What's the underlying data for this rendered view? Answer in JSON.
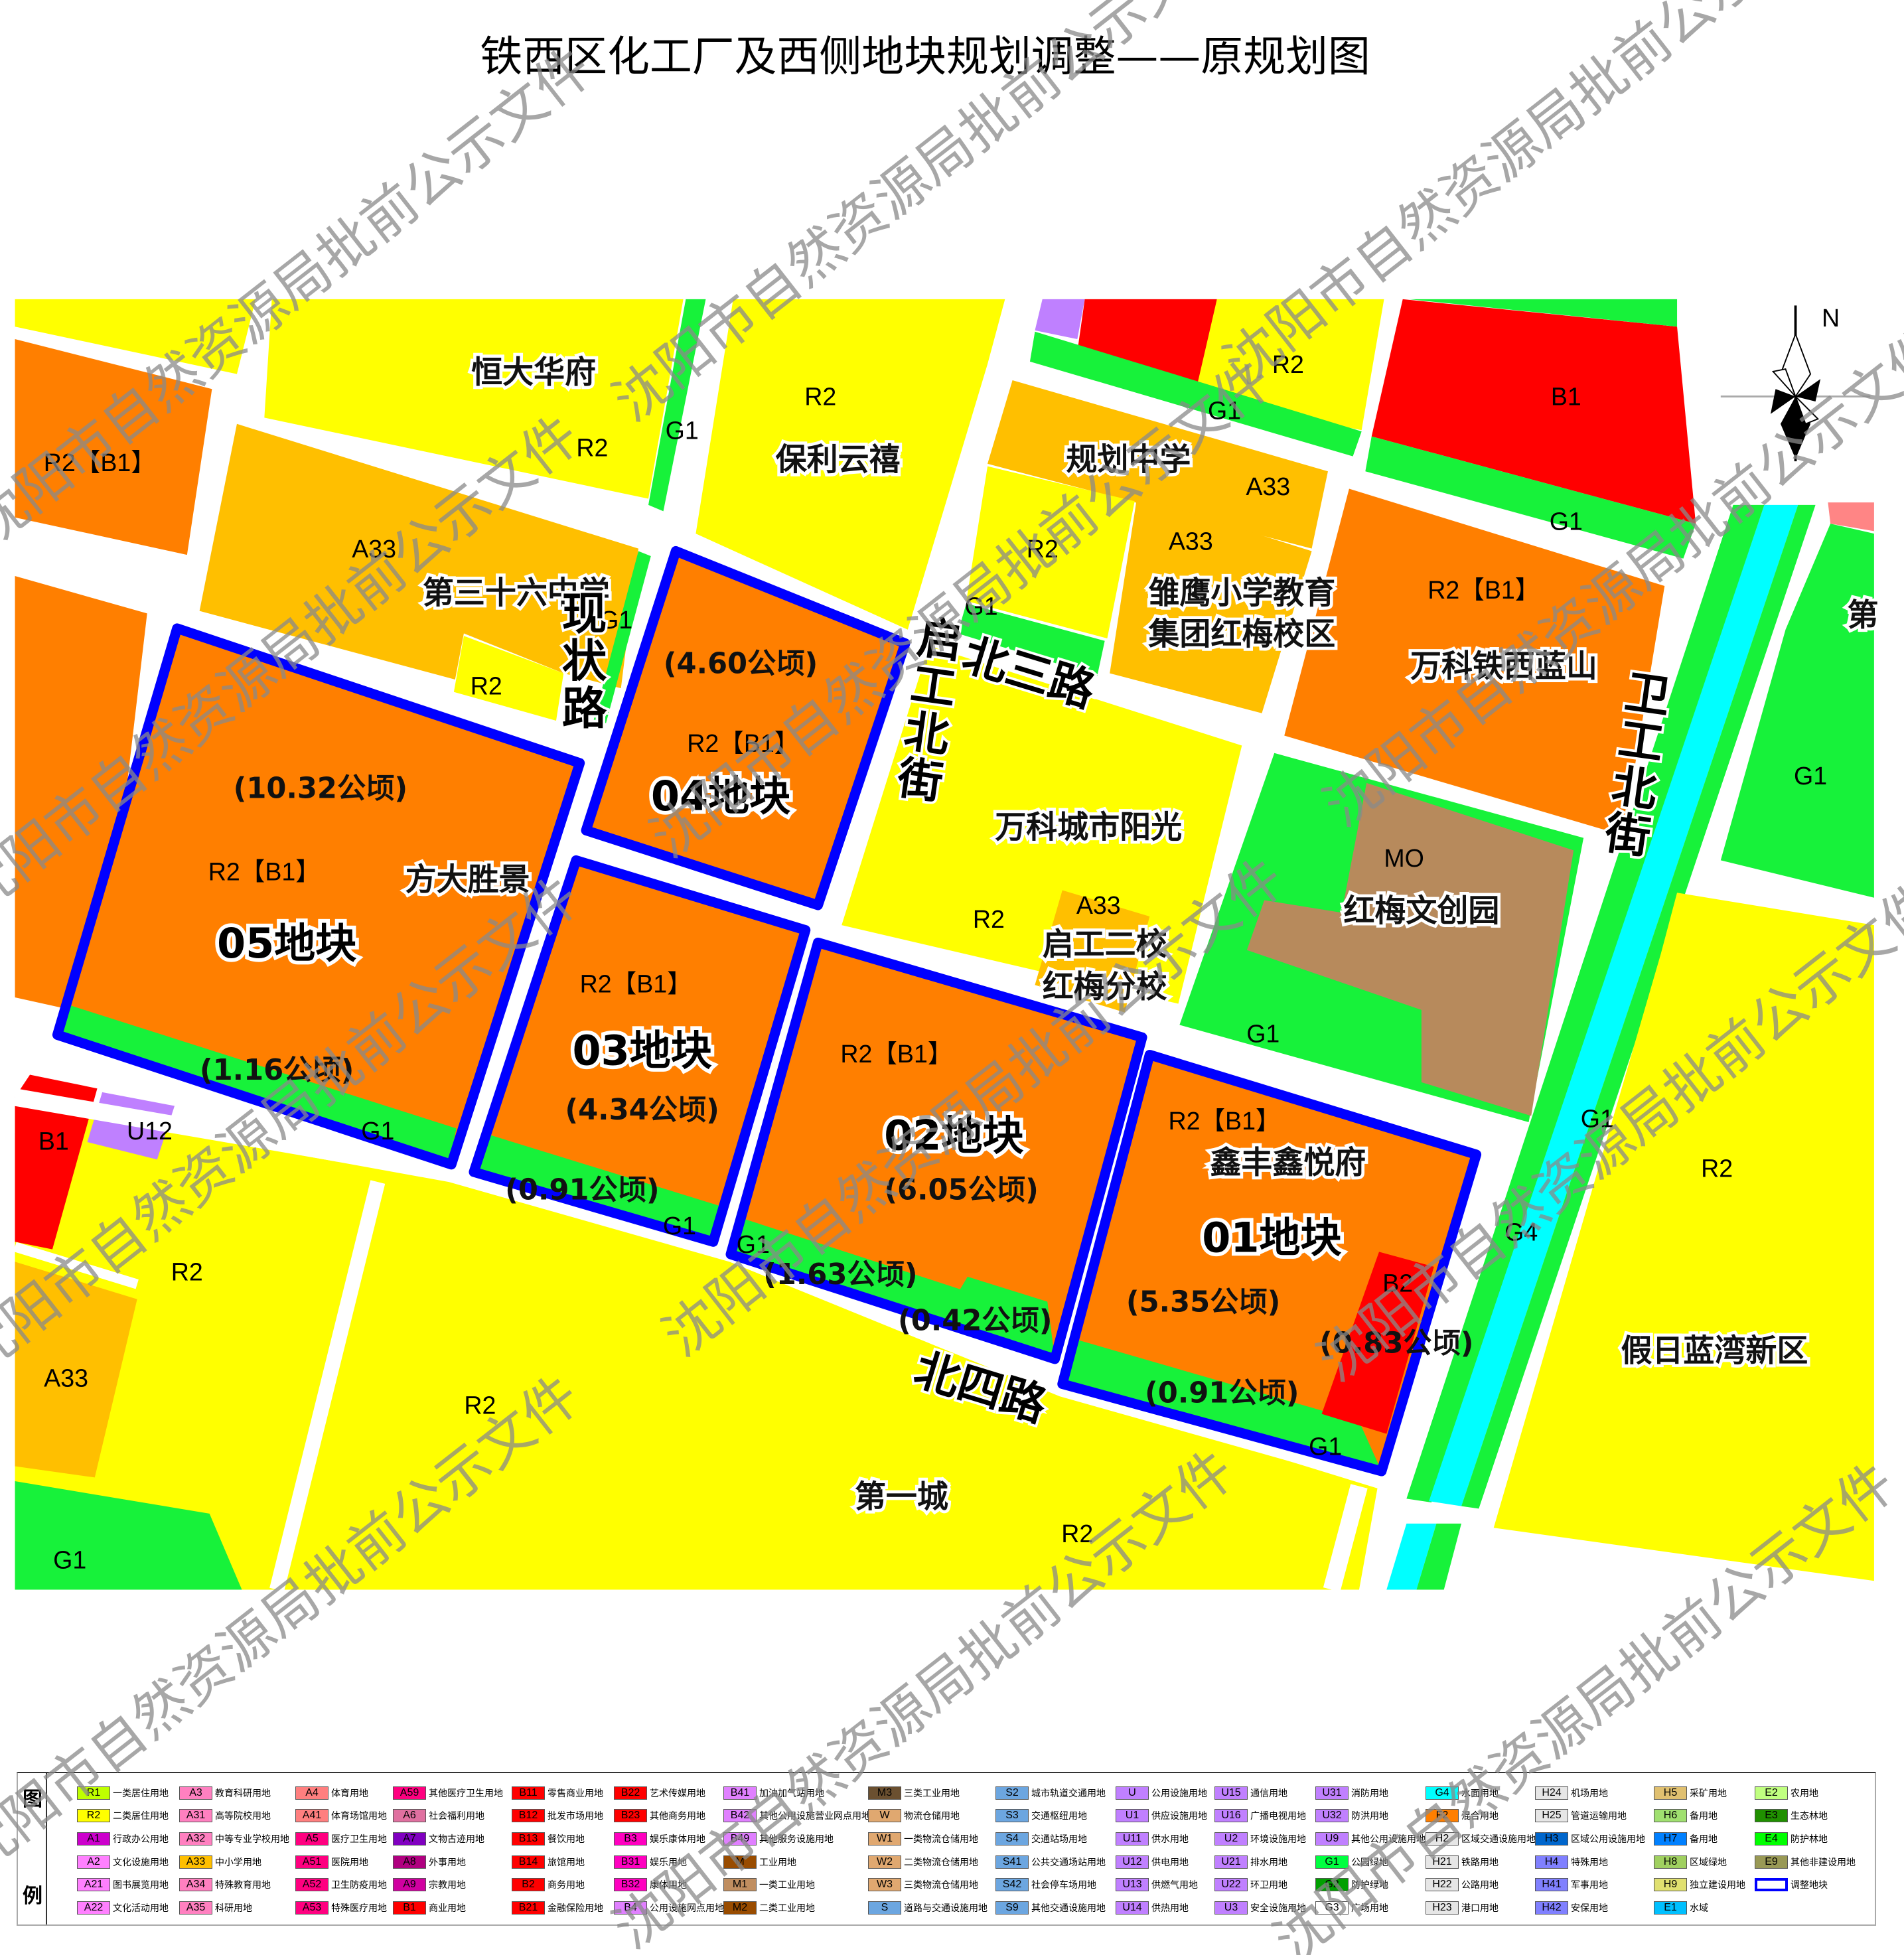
{
  "title": "铁西区化工厂及西侧地块规划调整——原规划图",
  "watermark": "沈阳市自然资源局批前公示文件",
  "compass": {
    "north_label": "N"
  },
  "colors": {
    "R2": "#ffff00",
    "R2_B1": "#ff7f00",
    "A33": "#ffbf00",
    "G1": "#17f23a",
    "B1": "#ff0000",
    "G4": "#00ffff",
    "M0": "#b78a5c",
    "U12": "#bf80ff",
    "adjust_outline": "#0000ff"
  },
  "roads": {
    "xianzhuang": "现状路",
    "qigong": "启工北街",
    "beisan": "北三路",
    "beisi": "北四路",
    "weigong": "卫工北街"
  },
  "places": {
    "hengda": "恒大华府",
    "baoli": "保利云禧",
    "guihua": "规划中学",
    "no36": "第三十六中学",
    "chuying1": "雏鹰小学教育",
    "chuying2": "集团红梅校区",
    "vanke_lanshan": "万科铁西蓝山",
    "vanke_yangguang": "万科城市阳光",
    "hongmei_wc": "红梅文创园",
    "qigong2_1": "启工二校",
    "qigong2_2": "红梅分校",
    "fangda": "方大胜景",
    "xinfeng": "鑫丰鑫悦府",
    "jiari": "假日蓝湾新区",
    "diyicheng": "第一城",
    "cut_right": "第"
  },
  "parcels": {
    "p05": {
      "name": "05地块",
      "code": "R2【B1】",
      "area": "(10.32公顷)",
      "green_area": "(1.16公顷)"
    },
    "p04": {
      "name": "04地块",
      "code": "R2【B1】",
      "area": "(4.60公顷)"
    },
    "p03": {
      "name": "03地块",
      "code": "R2【B1】",
      "area": "(4.34公顷)",
      "green_area": "(0.91公顷)"
    },
    "p02": {
      "name": "02地块",
      "code": "R2【B1】",
      "area": "(6.05公顷)",
      "green_area": "(1.63公顷)",
      "green_area2": "(0.42公顷)"
    },
    "p01": {
      "name": "01地块",
      "code": "R2【B1】",
      "area": "(5.35公顷)",
      "green_area": "(0.91公顷)",
      "b2_area": "(0.83公顷)",
      "b2_code": "B2"
    }
  },
  "codes": [
    "R2【B1】",
    "R2",
    "G1",
    "R2",
    "A33",
    "G1",
    "R2",
    "R2",
    "G1",
    "B1",
    "A33",
    "A33",
    "R2",
    "G1",
    "R2【B1】",
    "G1",
    "G1",
    "MO",
    "A33",
    "R2",
    "G1",
    "G1",
    "R2",
    "G4",
    "B1",
    "U12",
    "G1",
    "R2",
    "A33",
    "R2",
    "G1",
    "G1",
    "G1",
    "R2",
    "G1"
  ],
  "legend": {
    "title_chars": [
      "图",
      "例"
    ],
    "columns": [
      [
        {
          "code": "R1",
          "label": "一类居住用地",
          "color": "#bfff00"
        },
        {
          "code": "R2",
          "label": "二类居住用地",
          "color": "#ffff00"
        },
        {
          "code": "A1",
          "label": "行政办公用地",
          "color": "#cc00cc"
        },
        {
          "code": "A2",
          "label": "文化设施用地",
          "color": "#ff80ff"
        },
        {
          "code": "A21",
          "label": "图书展览用地",
          "color": "#ff80ff"
        },
        {
          "code": "A22",
          "label": "文化活动用地",
          "color": "#ff80ff"
        }
      ],
      [
        {
          "code": "A3",
          "label": "教育科研用地",
          "color": "#ff80c0"
        },
        {
          "code": "A31",
          "label": "高等院校用地",
          "color": "#ff80c0"
        },
        {
          "code": "A32",
          "label": "中等专业学校用地",
          "color": "#ff80c0"
        },
        {
          "code": "A33",
          "label": "中小学用地",
          "color": "#ffbf00"
        },
        {
          "code": "A34",
          "label": "特殊教育用地",
          "color": "#ff80c0"
        },
        {
          "code": "A35",
          "label": "科研用地",
          "color": "#ff80c0"
        }
      ],
      [
        {
          "code": "A4",
          "label": "体育用地",
          "color": "#ff7f7f"
        },
        {
          "code": "A41",
          "label": "体育场馆用地",
          "color": "#ff7f7f"
        },
        {
          "code": "A5",
          "label": "医疗卫生用地",
          "color": "#ff0080"
        },
        {
          "code": "A51",
          "label": "医院用地",
          "color": "#ff0080"
        },
        {
          "code": "A52",
          "label": "卫生防疫用地",
          "color": "#ff0080"
        },
        {
          "code": "A53",
          "label": "特殊医疗用地",
          "color": "#ff0080"
        }
      ],
      [
        {
          "code": "A59",
          "label": "其他医疗卫生用地",
          "color": "#ff0080"
        },
        {
          "code": "A6",
          "label": "社会福利用地",
          "color": "#e070a0"
        },
        {
          "code": "A7",
          "label": "文物古迹用地",
          "color": "#8000c0"
        },
        {
          "code": "A8",
          "label": "外事用地",
          "color": "#b00080"
        },
        {
          "code": "A9",
          "label": "宗教用地",
          "color": "#d000a0"
        },
        {
          "code": "B1",
          "label": "商业用地",
          "color": "#ff0000"
        }
      ],
      [
        {
          "code": "B11",
          "label": "零售商业用地",
          "color": "#ff0000"
        },
        {
          "code": "B12",
          "label": "批发市场用地",
          "color": "#ff0000"
        },
        {
          "code": "B13",
          "label": "餐饮用地",
          "color": "#ff0000"
        },
        {
          "code": "B14",
          "label": "旅馆用地",
          "color": "#ff0000"
        },
        {
          "code": "B2",
          "label": "商务用地",
          "color": "#ff0000"
        },
        {
          "code": "B21",
          "label": "金融保险用地",
          "color": "#ff0000"
        }
      ],
      [
        {
          "code": "B22",
          "label": "艺术传媒用地",
          "color": "#ff0000"
        },
        {
          "code": "B23",
          "label": "其他商务用地",
          "color": "#ff0000"
        },
        {
          "code": "B3",
          "label": "娱乐康体用地",
          "color": "#ff00c0"
        },
        {
          "code": "B31",
          "label": "娱乐用地",
          "color": "#ff00c0"
        },
        {
          "code": "B32",
          "label": "康体用地",
          "color": "#ff00c0"
        },
        {
          "code": "B4",
          "label": "公用设施网点用地",
          "color": "#e080ff"
        }
      ],
      [
        {
          "code": "B41",
          "label": "加油加气站用地",
          "color": "#e080ff"
        },
        {
          "code": "B42",
          "label": "其他公用设施营业网点用地",
          "color": "#e080ff"
        },
        {
          "code": "B49",
          "label": "其他服务设施用地",
          "color": "#e080ff"
        },
        {
          "code": "M",
          "label": "工业用地",
          "color": "#994c00"
        },
        {
          "code": "M1",
          "label": "一类工业用地",
          "color": "#c08e60"
        },
        {
          "code": "M2",
          "label": "二类工业用地",
          "color": "#994c00"
        }
      ],
      [
        {
          "code": "M3",
          "label": "三类工业用地",
          "color": "#6b5030"
        },
        {
          "code": "W",
          "label": "物流仓储用地",
          "color": "#e0a870"
        },
        {
          "code": "W1",
          "label": "一类物流仓储用地",
          "color": "#e0a870"
        },
        {
          "code": "W2",
          "label": "二类物流仓储用地",
          "color": "#e0a870"
        },
        {
          "code": "W3",
          "label": "三类物流仓储用地",
          "color": "#e0a870"
        },
        {
          "code": "S",
          "label": "道路与交通设施用地",
          "color": "#6ca6e0"
        }
      ],
      [
        {
          "code": "S2",
          "label": "城市轨道交通用地",
          "color": "#6ca6e0"
        },
        {
          "code": "S3",
          "label": "交通枢纽用地",
          "color": "#6ca6e0"
        },
        {
          "code": "S4",
          "label": "交通站场用地",
          "color": "#6ca6e0"
        },
        {
          "code": "S41",
          "label": "公共交通场站用地",
          "color": "#6ca6e0"
        },
        {
          "code": "S42",
          "label": "社会停车场用地",
          "color": "#6ca6e0"
        },
        {
          "code": "S9",
          "label": "其他交通设施用地",
          "color": "#6ca6e0"
        }
      ],
      [
        {
          "code": "U",
          "label": "公用设施用地",
          "color": "#c080ff"
        },
        {
          "code": "U1",
          "label": "供应设施用地",
          "color": "#c080ff"
        },
        {
          "code": "U11",
          "label": "供水用地",
          "color": "#c080ff"
        },
        {
          "code": "U12",
          "label": "供电用地",
          "color": "#c080ff"
        },
        {
          "code": "U13",
          "label": "供燃气用地",
          "color": "#c080ff"
        },
        {
          "code": "U14",
          "label": "供热用地",
          "color": "#c080ff"
        }
      ],
      [
        {
          "code": "U15",
          "label": "通信用地",
          "color": "#c080ff"
        },
        {
          "code": "U16",
          "label": "广播电视用地",
          "color": "#c080ff"
        },
        {
          "code": "U2",
          "label": "环境设施用地",
          "color": "#c080ff"
        },
        {
          "code": "U21",
          "label": "排水用地",
          "color": "#c080ff"
        },
        {
          "code": "U22",
          "label": "环卫用地",
          "color": "#c080ff"
        },
        {
          "code": "U3",
          "label": "安全设施用地",
          "color": "#c080ff"
        }
      ],
      [
        {
          "code": "U31",
          "label": "消防用地",
          "color": "#c080ff"
        },
        {
          "code": "U32",
          "label": "防洪用地",
          "color": "#c080ff"
        },
        {
          "code": "U9",
          "label": "其他公用设施用地",
          "color": "#c080ff"
        },
        {
          "code": "G1",
          "label": "公园绿地",
          "color": "#00ff40"
        },
        {
          "code": "G2",
          "label": "防护绿地",
          "color": "#00a000"
        },
        {
          "code": "G3",
          "label": "广场用地",
          "color": "#ffffff"
        }
      ],
      [
        {
          "code": "G4",
          "label": "水面用地",
          "color": "#00ffff"
        },
        {
          "code": "F2",
          "label": "混合用地",
          "color": "#ff7f00"
        },
        {
          "code": "H2",
          "label": "区域交通设施用地",
          "color": "#e6e6e6"
        },
        {
          "code": "H21",
          "label": "铁路用地",
          "color": "#e6e6e6"
        },
        {
          "code": "H22",
          "label": "公路用地",
          "color": "#e6e6e6"
        },
        {
          "code": "H23",
          "label": "港口用地",
          "color": "#e6e6e6"
        }
      ],
      [
        {
          "code": "H24",
          "label": "机场用地",
          "color": "#e6e6e6"
        },
        {
          "code": "H25",
          "label": "管道运输用地",
          "color": "#e6e6e6"
        },
        {
          "code": "H3",
          "label": "区域公用设施用地",
          "color": "#0066cc"
        },
        {
          "code": "H4",
          "label": "特殊用地",
          "color": "#8080ff"
        },
        {
          "code": "H41",
          "label": "军事用地",
          "color": "#8080ff"
        },
        {
          "code": "H42",
          "label": "安保用地",
          "color": "#8080ff"
        }
      ],
      [
        {
          "code": "H5",
          "label": "采矿用地",
          "color": "#e0c070"
        },
        {
          "code": "H6",
          "label": "备用地",
          "color": "#a0e070"
        },
        {
          "code": "H7",
          "label": "备用地",
          "color": "#0080ff"
        },
        {
          "code": "H8",
          "label": "区域绿地",
          "color": "#a0d060"
        },
        {
          "code": "H9",
          "label": "独立建设用地",
          "color": "#e0e070"
        },
        {
          "code": "E1",
          "label": "水域",
          "color": "#00c0ff"
        }
      ],
      [
        {
          "code": "E2",
          "label": "农用地",
          "color": "#c0ff80"
        },
        {
          "code": "E3",
          "label": "生态林地",
          "color": "#209000"
        },
        {
          "code": "E4",
          "label": "防护林地",
          "color": "#00ff00"
        },
        {
          "code": "E9",
          "label": "其他非建设用地",
          "color": "#999955"
        },
        {
          "code": "",
          "label": "调整地块",
          "color": "#ffffff",
          "outline": "#0000ff"
        }
      ]
    ]
  }
}
